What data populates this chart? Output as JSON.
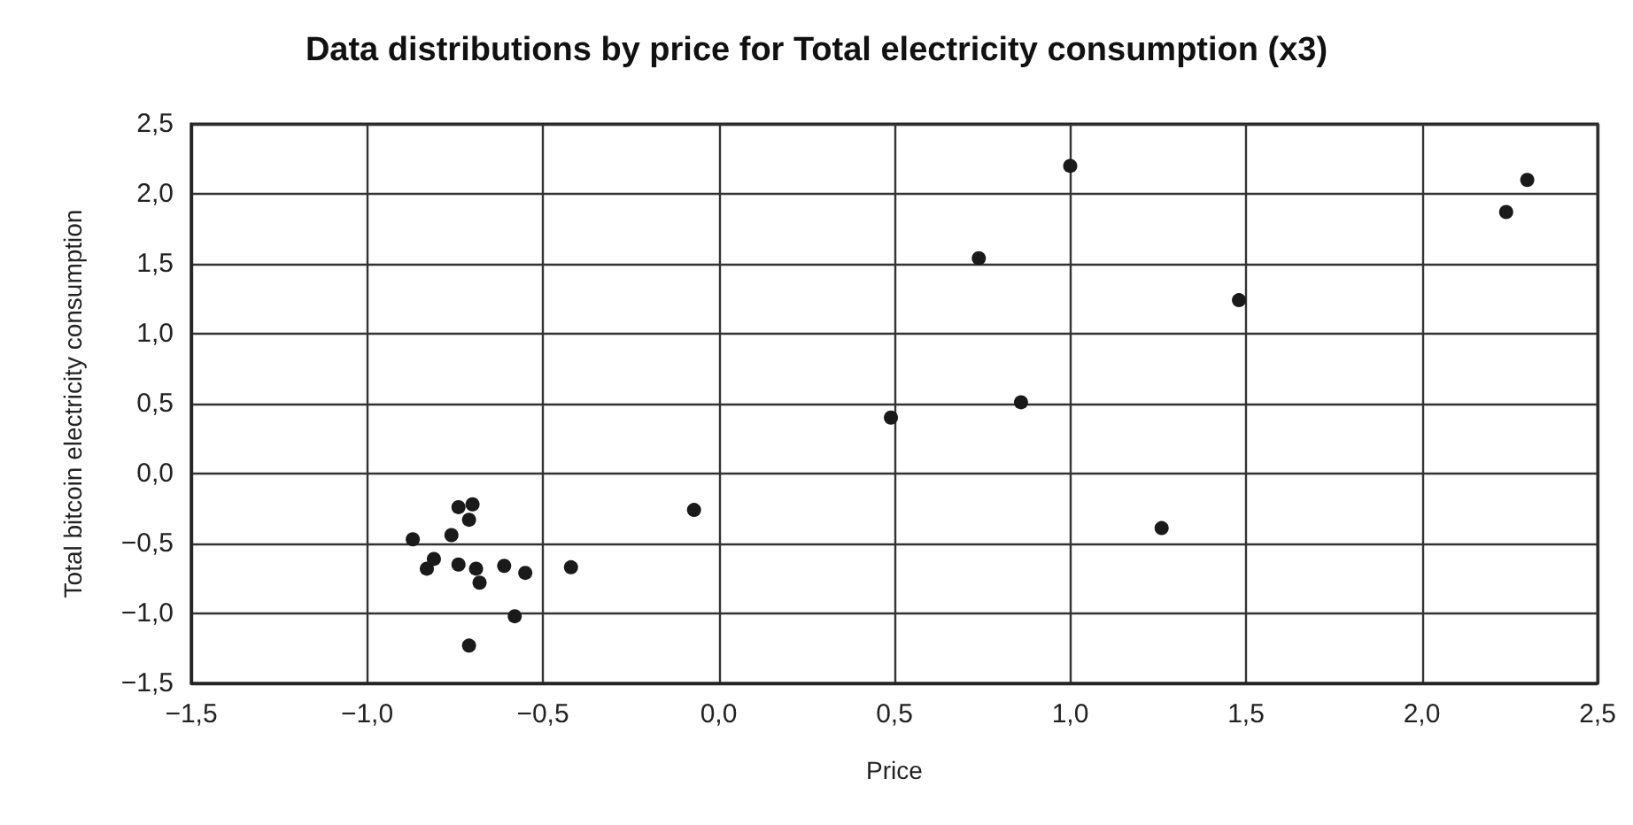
{
  "chart_data": {
    "type": "scatter",
    "title": "Data distributions by price for Total electricity consumption (x3)",
    "xlabel": "Price",
    "ylabel": "Total bitcoin electricity consumption",
    "series": [
      {
        "color": "#1a1a1a",
        "x": [
          -0.87,
          -0.74,
          -0.7,
          -0.71,
          -0.76,
          -0.81,
          -0.83,
          -0.74,
          -0.69,
          -0.68,
          -0.61,
          -0.55,
          -0.42,
          -0.58,
          -0.71,
          -0.07,
          0.49,
          0.86,
          0.74,
          1.0,
          1.26,
          1.48,
          2.24,
          2.3
        ],
        "values": [
          -0.47,
          -0.24,
          -0.22,
          -0.33,
          -0.44,
          -0.61,
          -0.68,
          -0.65,
          -0.68,
          -0.78,
          -0.66,
          -0.71,
          -0.67,
          -1.02,
          -1.23,
          -0.26,
          0.4,
          0.51,
          1.54,
          2.2,
          -0.39,
          1.24,
          1.87,
          2.1
        ]
      }
    ],
    "xlim": [
      -1.5,
      2.5
    ],
    "ylim": [
      -1.5,
      2.5
    ],
    "xticks": [
      {
        "value": -1.5,
        "label": "−1,5"
      },
      {
        "value": -1.0,
        "label": "−1,0"
      },
      {
        "value": -0.5,
        "label": "−0,5"
      },
      {
        "value": 0,
        "label": "0,0"
      },
      {
        "value": 0.5,
        "label": "0,5"
      },
      {
        "value": 1.0,
        "label": "1,0"
      },
      {
        "value": 1.5,
        "label": "1,5"
      },
      {
        "value": 2.0,
        "label": "2,0"
      },
      {
        "value": 2.5,
        "label": "2,5"
      }
    ],
    "yticks": [
      {
        "value": -1.5,
        "label": "−1,5"
      },
      {
        "value": -1.0,
        "label": "−1,0"
      },
      {
        "value": -0.5,
        "label": "−0,5"
      },
      {
        "value": 0,
        "label": "0,0"
      },
      {
        "value": 0.5,
        "label": "0,5"
      },
      {
        "value": 1.0,
        "label": "1,0"
      },
      {
        "value": 1.5,
        "label": "1,5"
      },
      {
        "value": 2.0,
        "label": "2,0"
      },
      {
        "value": 2.5,
        "label": "2,5"
      }
    ],
    "grid": true,
    "marker": "circle"
  }
}
